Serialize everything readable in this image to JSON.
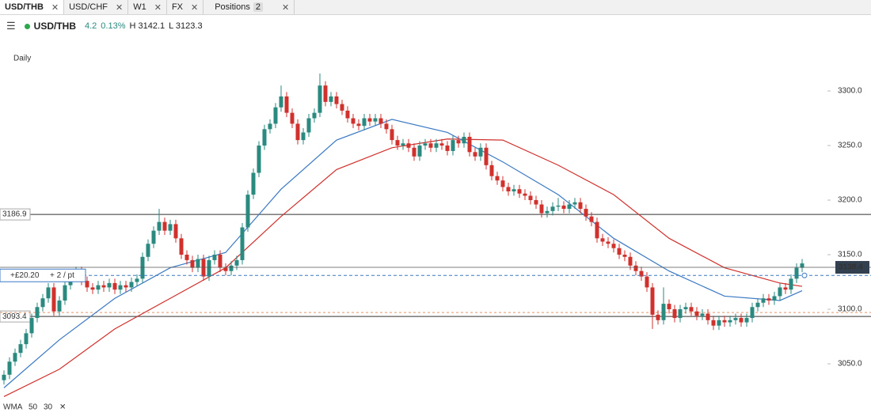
{
  "tabs": [
    "USD/THB",
    "USD/CHF",
    "W1",
    "FX",
    "Positions"
  ],
  "positions_count": 2,
  "quote": {
    "name": "USD/THB",
    "change": "4.2",
    "change_pct": "0.13%",
    "high": "H 3142.1",
    "low": "L 3123.3"
  },
  "chart_data": {
    "type": "candlestick",
    "period": "Daily",
    "up_color": "#2a8a80",
    "down_color": "#d0312d",
    "open": [
      3035,
      3040,
      3052,
      3060,
      3068,
      3078,
      3092,
      3102,
      3110,
      3120,
      3098,
      3108,
      3122,
      3130,
      3135,
      3126,
      3120,
      3118,
      3122,
      3120,
      3124,
      3118,
      3122,
      3120,
      3125,
      3128,
      3148,
      3160,
      3172,
      3180,
      3172,
      3178,
      3165,
      3150,
      3145,
      3138,
      3146,
      3130,
      3145,
      3150,
      3138,
      3135,
      3140,
      3145,
      3175,
      3205,
      3225,
      3250,
      3265,
      3270,
      3285,
      3295,
      3280,
      3270,
      3255,
      3262,
      3275,
      3280,
      3305,
      3290,
      3295,
      3288,
      3282,
      3275,
      3270,
      3268,
      3275,
      3272,
      3275,
      3270,
      3265,
      3255,
      3250,
      3252,
      3248,
      3240,
      3250,
      3252,
      3248,
      3252,
      3250,
      3245,
      3255,
      3252,
      3258,
      3244,
      3240,
      3248,
      3232,
      3222,
      3218,
      3212,
      3208,
      3210,
      3206,
      3204,
      3200,
      3196,
      3188,
      3190,
      3194,
      3195,
      3192,
      3196,
      3198,
      3192,
      3185,
      3180,
      3165,
      3162,
      3160,
      3156,
      3150,
      3148,
      3140,
      3135,
      3130,
      3120,
      3095,
      3090,
      3105,
      3100,
      3092,
      3100,
      3102,
      3098,
      3094,
      3096,
      3090,
      3085,
      3090,
      3088,
      3090,
      3092,
      3088,
      3092,
      3102,
      3106,
      3110,
      3108,
      3112,
      3120,
      3118,
      3128,
      3138
    ],
    "high": [
      3044,
      3056,
      3064,
      3072,
      3082,
      3096,
      3106,
      3114,
      3124,
      3124,
      3112,
      3126,
      3134,
      3139,
      3139,
      3130,
      3124,
      3126,
      3126,
      3128,
      3128,
      3126,
      3126,
      3129,
      3132,
      3152,
      3164,
      3176,
      3192,
      3184,
      3182,
      3182,
      3169,
      3154,
      3149,
      3150,
      3150,
      3149,
      3154,
      3154,
      3142,
      3144,
      3149,
      3179,
      3209,
      3229,
      3254,
      3269,
      3274,
      3289,
      3305,
      3299,
      3284,
      3274,
      3266,
      3279,
      3284,
      3316,
      3309,
      3299,
      3299,
      3292,
      3286,
      3279,
      3274,
      3279,
      3279,
      3279,
      3279,
      3274,
      3269,
      3259,
      3256,
      3256,
      3252,
      3254,
      3256,
      3256,
      3256,
      3256,
      3254,
      3259,
      3259,
      3262,
      3262,
      3248,
      3252,
      3252,
      3236,
      3226,
      3222,
      3216,
      3214,
      3214,
      3210,
      3208,
      3204,
      3200,
      3194,
      3198,
      3202,
      3199,
      3200,
      3202,
      3202,
      3196,
      3189,
      3184,
      3169,
      3166,
      3164,
      3160,
      3154,
      3152,
      3144,
      3139,
      3134,
      3124,
      3099,
      3120,
      3109,
      3104,
      3104,
      3106,
      3106,
      3102,
      3100,
      3100,
      3094,
      3094,
      3094,
      3094,
      3096,
      3096,
      3096,
      3106,
      3110,
      3114,
      3114,
      3116,
      3124,
      3124,
      3132,
      3142,
      3146
    ],
    "low": [
      3031,
      3036,
      3048,
      3056,
      3064,
      3074,
      3088,
      3098,
      3106,
      3094,
      3094,
      3104,
      3118,
      3126,
      3122,
      3116,
      3114,
      3114,
      3116,
      3116,
      3114,
      3114,
      3116,
      3116,
      3121,
      3124,
      3144,
      3156,
      3168,
      3168,
      3168,
      3161,
      3146,
      3141,
      3134,
      3134,
      3126,
      3126,
      3141,
      3134,
      3131,
      3131,
      3136,
      3141,
      3171,
      3201,
      3221,
      3246,
      3261,
      3266,
      3281,
      3276,
      3266,
      3251,
      3251,
      3258,
      3271,
      3276,
      3286,
      3286,
      3284,
      3278,
      3271,
      3266,
      3264,
      3264,
      3268,
      3268,
      3266,
      3261,
      3251,
      3246,
      3246,
      3244,
      3236,
      3236,
      3246,
      3244,
      3244,
      3246,
      3241,
      3241,
      3248,
      3248,
      3240,
      3236,
      3236,
      3228,
      3218,
      3214,
      3208,
      3204,
      3204,
      3202,
      3200,
      3196,
      3192,
      3184,
      3184,
      3186,
      3190,
      3188,
      3188,
      3192,
      3188,
      3181,
      3176,
      3161,
      3158,
      3156,
      3152,
      3146,
      3144,
      3136,
      3131,
      3126,
      3116,
      3082,
      3086,
      3086,
      3096,
      3088,
      3088,
      3096,
      3094,
      3090,
      3090,
      3086,
      3081,
      3081,
      3084,
      3084,
      3086,
      3084,
      3084,
      3088,
      3098,
      3102,
      3104,
      3104,
      3108,
      3114,
      3114,
      3124,
      3134
    ],
    "close": [
      3040,
      3052,
      3060,
      3068,
      3078,
      3092,
      3102,
      3110,
      3120,
      3098,
      3108,
      3122,
      3130,
      3135,
      3126,
      3120,
      3118,
      3122,
      3120,
      3124,
      3118,
      3122,
      3120,
      3125,
      3128,
      3148,
      3160,
      3172,
      3180,
      3172,
      3178,
      3165,
      3150,
      3145,
      3138,
      3146,
      3130,
      3145,
      3150,
      3138,
      3135,
      3140,
      3145,
      3175,
      3205,
      3225,
      3250,
      3265,
      3270,
      3285,
      3295,
      3280,
      3270,
      3255,
      3262,
      3275,
      3280,
      3305,
      3290,
      3295,
      3288,
      3282,
      3275,
      3270,
      3268,
      3275,
      3272,
      3275,
      3270,
      3265,
      3255,
      3250,
      3252,
      3248,
      3240,
      3250,
      3252,
      3248,
      3252,
      3250,
      3245,
      3255,
      3252,
      3258,
      3244,
      3240,
      3248,
      3232,
      3222,
      3218,
      3212,
      3208,
      3210,
      3206,
      3204,
      3200,
      3196,
      3188,
      3190,
      3194,
      3195,
      3192,
      3196,
      3198,
      3192,
      3185,
      3180,
      3165,
      3162,
      3160,
      3156,
      3150,
      3148,
      3140,
      3135,
      3130,
      3120,
      3095,
      3090,
      3105,
      3100,
      3092,
      3100,
      3102,
      3098,
      3094,
      3096,
      3090,
      3085,
      3090,
      3088,
      3090,
      3092,
      3088,
      3092,
      3102,
      3106,
      3110,
      3108,
      3112,
      3120,
      3118,
      3128,
      3138,
      3142
    ],
    "indicator": {
      "label": "WMA",
      "series": [
        {
          "name": "50",
          "color": "#d0312d",
          "x": [
            0,
            10,
            20,
            30,
            40,
            50,
            60,
            70,
            80,
            90,
            100,
            110,
            120,
            130,
            140,
            144
          ],
          "values": [
            3020,
            3045,
            3082,
            3110,
            3138,
            3185,
            3228,
            3248,
            3256,
            3255,
            3232,
            3205,
            3165,
            3138,
            3124,
            3121
          ]
        },
        {
          "name": "30",
          "color": "#3a78c4",
          "x": [
            0,
            10,
            20,
            30,
            40,
            50,
            60,
            70,
            80,
            90,
            100,
            110,
            120,
            130,
            140,
            144
          ],
          "values": [
            3028,
            3072,
            3110,
            3138,
            3152,
            3210,
            3255,
            3274,
            3262,
            3235,
            3205,
            3165,
            3135,
            3112,
            3108,
            3117
          ]
        }
      ]
    },
    "levels": [
      {
        "value": 3186.9,
        "label": "3186.9"
      },
      {
        "value": 3093.4,
        "label": "3093.4"
      }
    ],
    "order_line": 3097,
    "position": {
      "value": 3131,
      "pnl": "+£20.20",
      "size": "+ 2 / pt"
    },
    "current": {
      "value": 3138.4,
      "label": "3138.4"
    },
    "ylim": [
      3017.4,
      3349.3
    ],
    "yticks": [
      {
        "value": 3050,
        "label": "3050.0"
      },
      {
        "value": 3100,
        "label": "3100.0"
      },
      {
        "value": 3150,
        "label": "3150.0"
      },
      {
        "value": 3200,
        "label": "3200.0"
      },
      {
        "value": 3250,
        "label": "3250.0"
      },
      {
        "value": 3300,
        "label": "3300.0"
      }
    ]
  }
}
